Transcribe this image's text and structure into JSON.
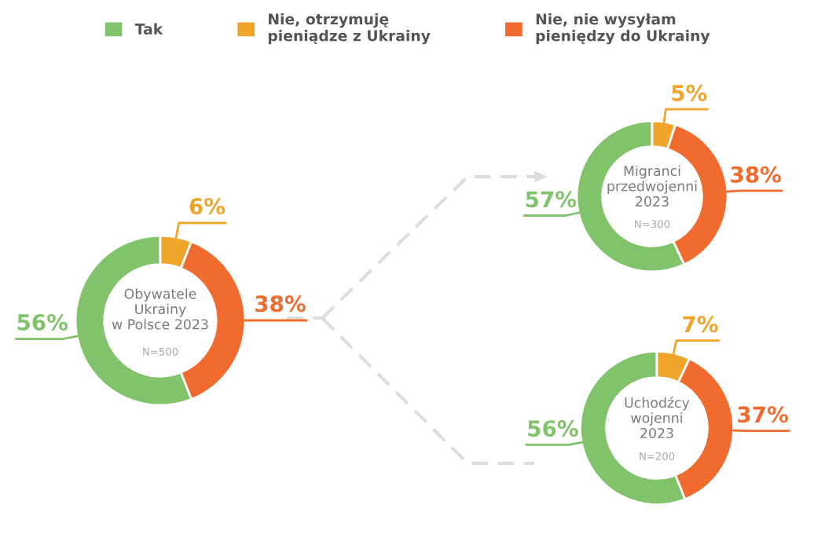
{
  "chart_data": [
    {
      "type": "donut",
      "title": "Obywatele\nUkrainy\nw Polsce 2023",
      "annotations": [
        "N=500"
      ],
      "categories": [
        "Tak",
        "Nie, otrzymuję\npieniądze z Ukrainy",
        "Nie, nie wysyłam\npieniędzy do Ukrainy"
      ],
      "values": [
        56,
        6,
        38
      ],
      "value_labels": [
        "56%",
        "6%",
        "38%"
      ],
      "colors": [
        "#80c36b",
        "#f0a42a",
        "#f06b2d"
      ],
      "legend": "top"
    },
    {
      "type": "donut",
      "title": "Migranci\nprzedwojenni\n2023",
      "annotations": [
        "N=300"
      ],
      "values": [
        57,
        5,
        38
      ],
      "value_labels": [
        "57%",
        "5%",
        "38%"
      ],
      "colors": [
        "#80c36b",
        "#f0a42a",
        "#f06b2d"
      ]
    },
    {
      "type": "donut",
      "title": "Uchodźcy\nwojenni\n2023",
      "annotations": [
        "N=200"
      ],
      "values": [
        56,
        7,
        37
      ],
      "value_labels": [
        "56%",
        "7%",
        "37%"
      ],
      "colors": [
        "#80c36b",
        "#f0a42a",
        "#f06b2d"
      ]
    }
  ]
}
